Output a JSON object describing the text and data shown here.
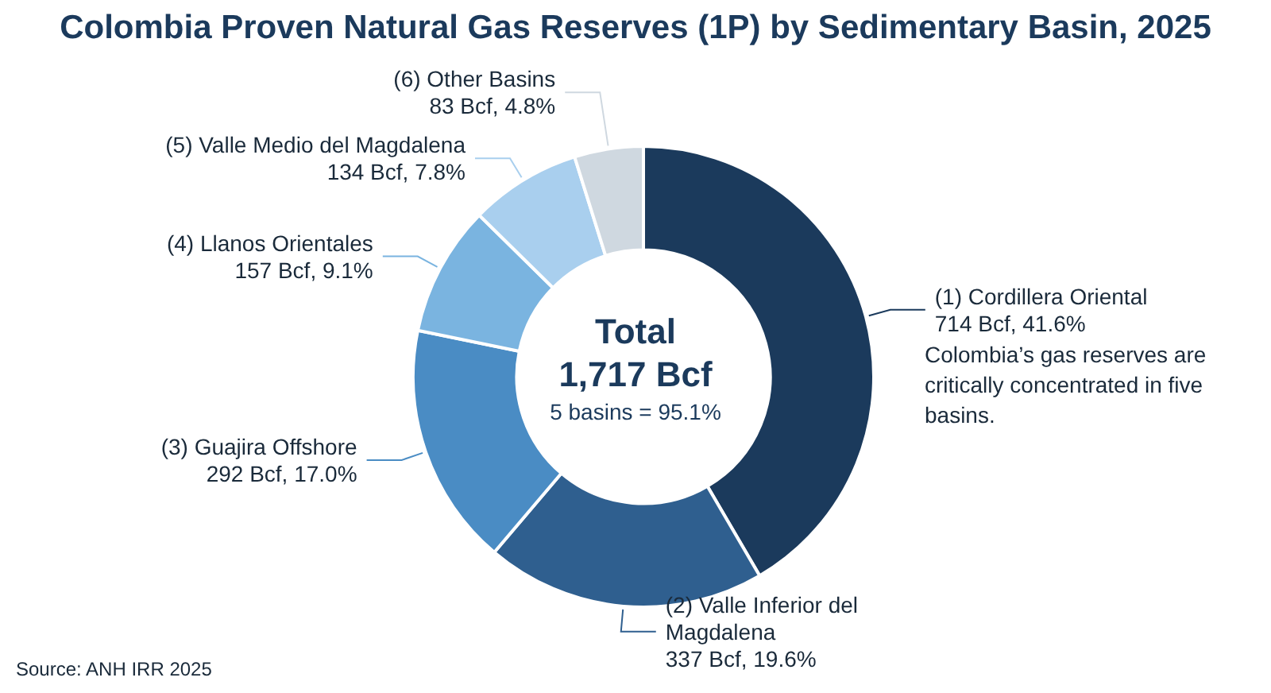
{
  "chart_data": {
    "type": "donut",
    "title": "Colombia Proven Natural Gas Reserves (1P) by Sedimentary Basin, 2025",
    "categories": [
      "(1) Cordillera Oriental",
      "(2) Valle Inferior del Magdalena",
      "(3) Guajira Offshore",
      "(4) Llanos Orientales",
      "(5) Valle Medio del Magdalena",
      "(6) Other Basins"
    ],
    "values": [
      714,
      337,
      292,
      157,
      134,
      83
    ],
    "value_labels": [
      "714 Bcf, 41.6%",
      "337 Bcf, 19.6%",
      "292 Bcf, 17.0%",
      "157 Bcf, 9.1%",
      "134 Bcf, 7.8%",
      "83 Bcf, 4.8%"
    ],
    "colors": [
      "#1b3a5c",
      "#2f5f8f",
      "#4a8cc4",
      "#7ab4e0",
      "#a9cfee",
      "#cfd8e0"
    ],
    "annotations": [
      "Total",
      "1,717 Bcf",
      "5 basins = 95.1%",
      "Colombia’s gas reserves are critically concentrated in five basins.",
      "Source: ANH IRR 2025"
    ]
  }
}
